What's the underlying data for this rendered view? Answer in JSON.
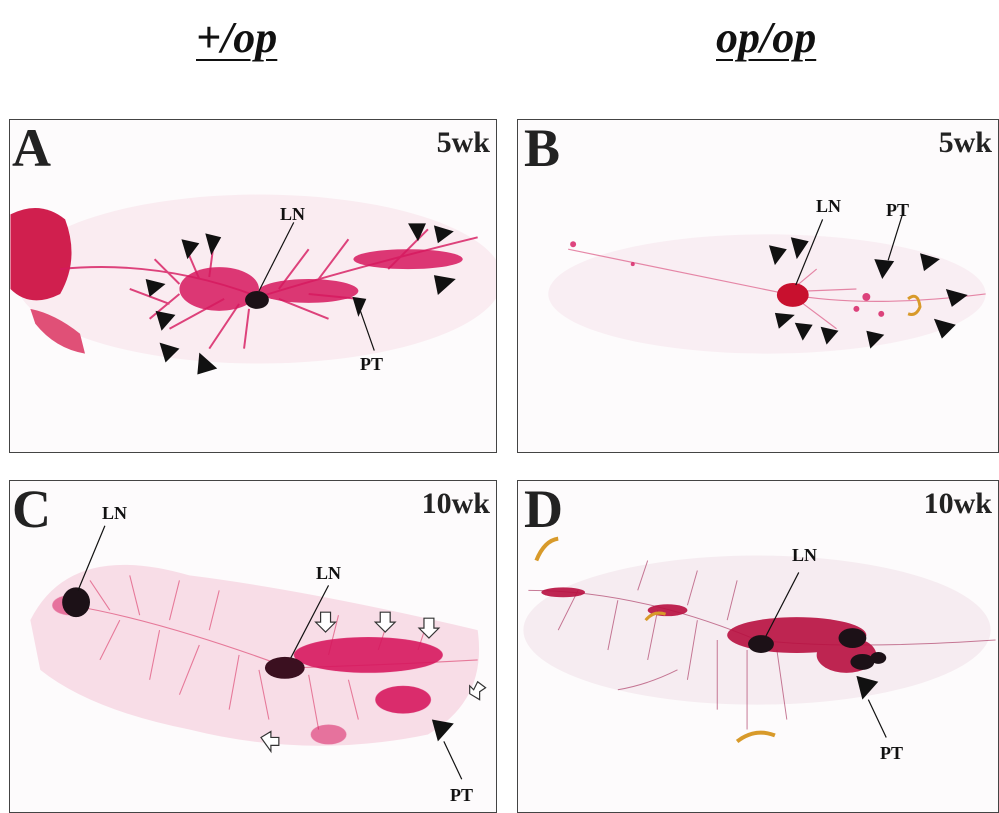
{
  "columns": {
    "left": "+/op",
    "right": "op/op"
  },
  "panels": {
    "a": {
      "label": "A",
      "age": "5wk",
      "ln": "LN",
      "pt": "PT"
    },
    "b": {
      "label": "B",
      "age": "5wk",
      "ln": "LN",
      "pt": "PT"
    },
    "c": {
      "label": "C",
      "age": "10wk",
      "ln1": "LN",
      "ln2": "LN",
      "pt": "PT"
    },
    "d": {
      "label": "D",
      "age": "10wk",
      "ln": "LN",
      "pt": "PT"
    }
  },
  "colors": {
    "stain": "#d6185e",
    "stain_light": "#ea8fb0",
    "lymph_node": "#1c1117",
    "background": "#fdfbfc",
    "calcified": "#d89a2a"
  }
}
